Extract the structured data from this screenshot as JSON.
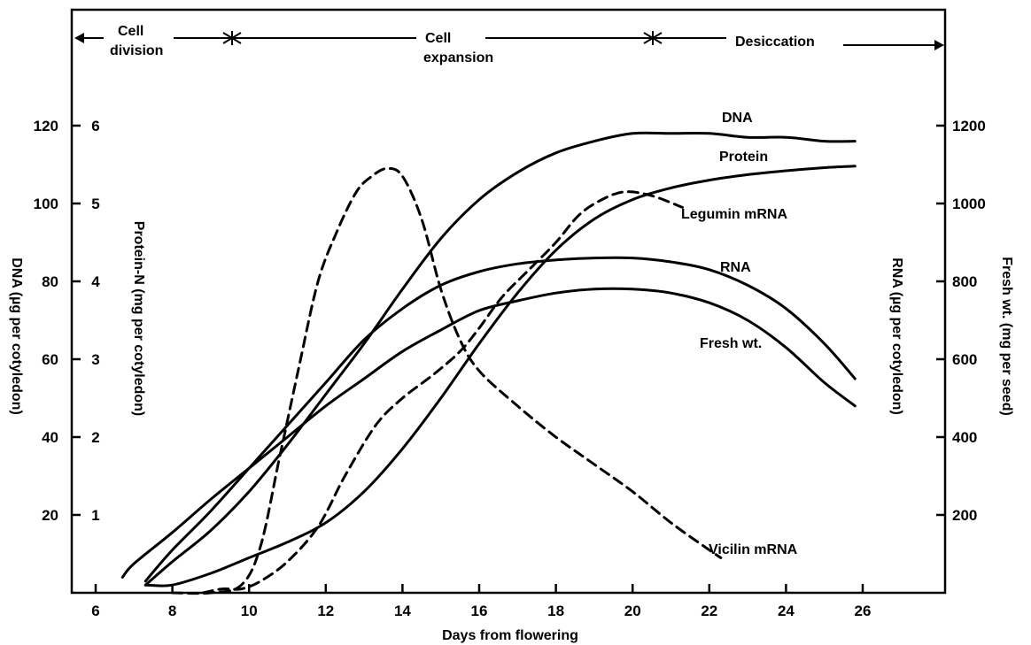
{
  "chart_data": {
    "type": "line",
    "xlabel": "Days from flowering",
    "x_ticks": [
      6,
      8,
      10,
      12,
      14,
      16,
      18,
      20,
      22,
      24,
      26
    ],
    "xlim": [
      6,
      28
    ],
    "axes": {
      "dna": {
        "label": "DNA (µg per cotyledon)",
        "ticks": [
          20,
          40,
          60,
          80,
          100,
          120
        ],
        "ylim": [
          0,
          150
        ]
      },
      "protein": {
        "label": "Protein-N (mg per cotyledon)",
        "ticks": [
          1,
          2,
          3,
          4,
          5,
          6
        ],
        "ylim": [
          0,
          7.5
        ]
      },
      "rna": {
        "label": "RNA (µg per cotyledon)",
        "ticks": [
          200,
          400,
          600,
          800,
          1000,
          1200
        ],
        "ylim": [
          0,
          1500
        ]
      },
      "fresh": {
        "label": "Fresh wt. (mg per seed)",
        "ticks": [],
        "ylim": [
          0,
          1500
        ]
      }
    },
    "phases": [
      {
        "label": "Cell division",
        "x_start": 6,
        "x_end": 10
      },
      {
        "label": "Cell expansion",
        "x_start": 10,
        "x_end": 20.5
      },
      {
        "label": "Desiccation",
        "x_start": 20.5,
        "x_end": 28
      }
    ],
    "series": [
      {
        "name": "DNA",
        "style": "solid",
        "units": "dna",
        "x": [
          7.3,
          8,
          9,
          10,
          11,
          12,
          13,
          14,
          15,
          16,
          17,
          18,
          19,
          20,
          21,
          22,
          23,
          24,
          25,
          25.8
        ],
        "y": [
          2,
          8,
          16,
          26,
          38,
          51,
          64,
          78,
          91,
          101,
          108,
          113,
          116,
          118,
          118,
          118,
          117,
          117,
          116,
          116
        ]
      },
      {
        "name": "Protein",
        "style": "solid",
        "units": "protein",
        "x": [
          7.3,
          8,
          9,
          10,
          11,
          12,
          13,
          14,
          15,
          16,
          17,
          18,
          19,
          20,
          21,
          22,
          23,
          24,
          25,
          25.8
        ],
        "y": [
          0.1,
          0.1,
          0.25,
          0.45,
          0.65,
          0.9,
          1.3,
          1.85,
          2.5,
          3.2,
          3.85,
          4.4,
          4.8,
          5.05,
          5.2,
          5.3,
          5.37,
          5.42,
          5.46,
          5.48
        ]
      },
      {
        "name": "Legumin mRNA",
        "style": "dashed",
        "units": "dna",
        "x": [
          8.8,
          9.3,
          9.8,
          10.3,
          11,
          11.8,
          12.5,
          13.3,
          14,
          14.8,
          15.5,
          16,
          16.6,
          17.3,
          18,
          18.6,
          19.2,
          19.8,
          20.5,
          21.3
        ],
        "y": [
          0,
          1,
          1,
          3,
          8,
          17,
          30,
          43,
          50,
          56,
          62,
          68,
          76,
          83,
          90,
          97,
          101,
          103,
          102,
          99
        ]
      },
      {
        "name": "RNA",
        "style": "solid",
        "units": "rna",
        "x": [
          7.3,
          8,
          9,
          10,
          11,
          12,
          13,
          14,
          15,
          16,
          17,
          18,
          19,
          20,
          21,
          22,
          23,
          24,
          25,
          25.8
        ],
        "y": [
          30,
          110,
          210,
          320,
          430,
          540,
          650,
          730,
          790,
          825,
          845,
          855,
          860,
          860,
          850,
          830,
          790,
          730,
          640,
          550
        ]
      },
      {
        "name": "Fresh wt.",
        "style": "solid",
        "units": "fresh",
        "x": [
          6.7,
          7,
          8,
          9,
          10,
          11,
          12,
          13,
          14,
          15,
          16,
          17,
          18,
          19,
          20,
          21,
          22,
          23,
          24,
          25,
          25.8
        ],
        "y": [
          40,
          75,
          155,
          240,
          320,
          400,
          480,
          550,
          620,
          675,
          725,
          750,
          770,
          780,
          780,
          770,
          745,
          700,
          630,
          540,
          480
        ]
      },
      {
        "name": "Vicilin mRNA",
        "style": "dashed",
        "units": "dna",
        "x": [
          8,
          9,
          9.8,
          10.3,
          10.8,
          11.3,
          11.8,
          12.3,
          12.8,
          13.2,
          13.6,
          14,
          14.5,
          15,
          15.5,
          16,
          17,
          18,
          19,
          20,
          21,
          22,
          22.3
        ],
        "y": [
          0,
          0,
          2,
          12,
          35,
          58,
          80,
          93,
          103,
          107,
          109,
          107,
          96,
          78,
          65,
          57,
          48,
          40,
          33,
          26,
          18,
          11,
          9
        ]
      }
    ]
  },
  "labels": {
    "title": "",
    "xlabel": "Days from flowering",
    "y_dna": "DNA (µg per cotyledon)",
    "y_protein": "Protein-N (mg per cotyledon)",
    "y_rna": "RNA (µg per cotyledon)",
    "y_fresh": "Fresh wt. (mg per seed)",
    "phase_division_1": "Cell",
    "phase_division_2": "division",
    "phase_expansion_1": "Cell",
    "phase_expansion_2": "expansion",
    "phase_desiccation": "Desiccation",
    "series_dna": "DNA",
    "series_protein": "Protein",
    "series_legumin": "Legumin mRNA",
    "series_rna": "RNA",
    "series_fresh": "Fresh wt.",
    "series_vicilin": "Vicilin mRNA"
  }
}
